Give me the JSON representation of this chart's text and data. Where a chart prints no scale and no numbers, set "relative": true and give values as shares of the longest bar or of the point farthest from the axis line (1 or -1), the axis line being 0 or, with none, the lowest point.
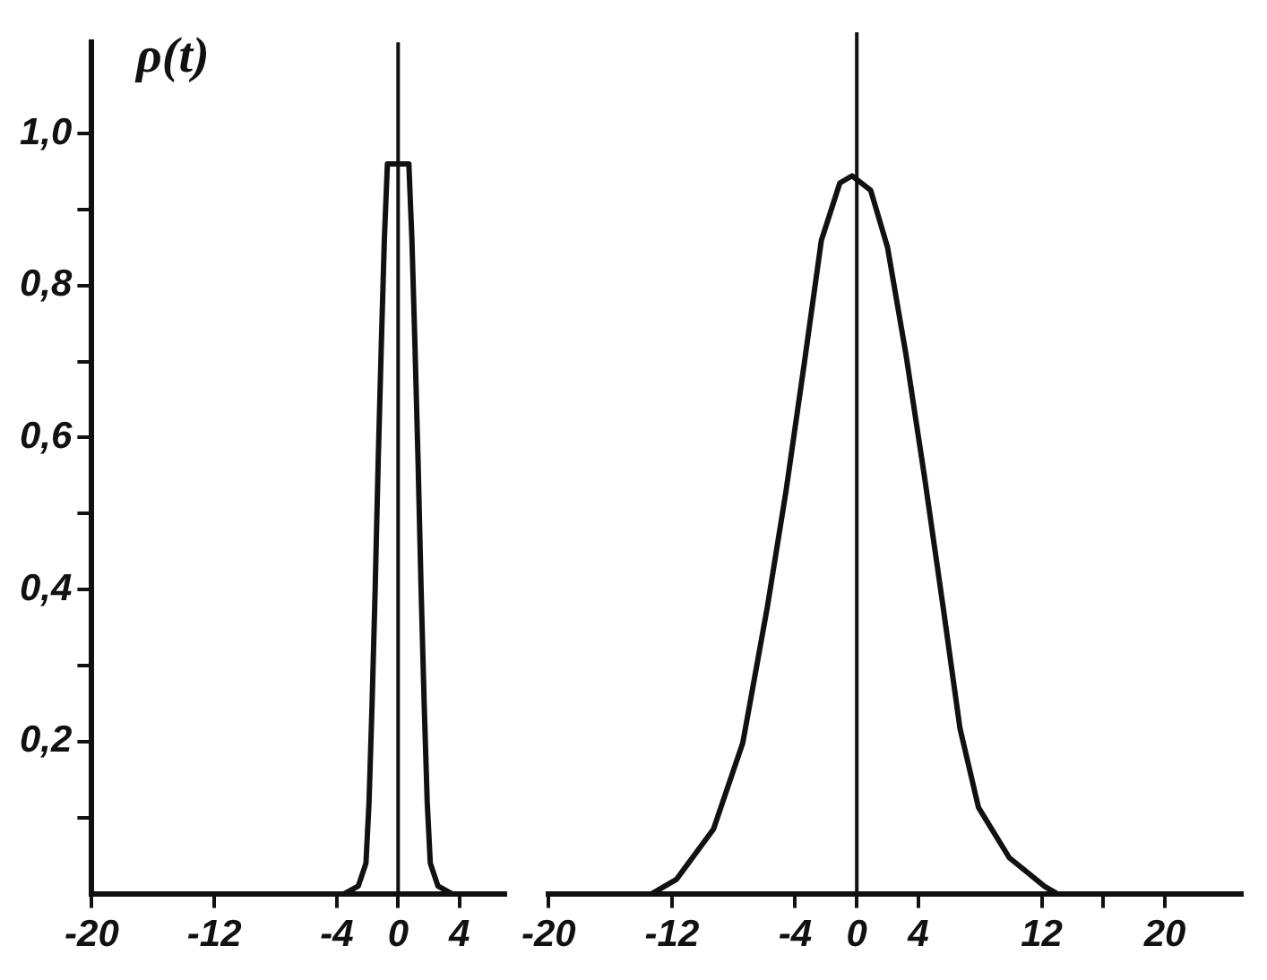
{
  "chart_data": [
    {
      "type": "line",
      "ylabel": "ρ(t)",
      "color": "#111111",
      "marker": "none",
      "line_style": "solid",
      "grid": false,
      "x": [
        -3.5,
        -2.6,
        -2.1,
        -1.9,
        -1.7,
        -1.5,
        -1.3,
        -1.1,
        -0.9,
        -0.7,
        0,
        0.7,
        0.9,
        1.1,
        1.3,
        1.5,
        1.7,
        1.9,
        2.1,
        2.6,
        3.5
      ],
      "values": [
        0,
        0.01,
        0.04,
        0.12,
        0.25,
        0.4,
        0.57,
        0.72,
        0.86,
        0.96,
        0.96,
        0.96,
        0.86,
        0.72,
        0.57,
        0.4,
        0.25,
        0.12,
        0.04,
        0.01,
        0
      ],
      "xlim": [
        -20,
        7
      ],
      "xticks": [
        -20,
        -12,
        -4,
        0,
        4
      ],
      "ylim": [
        0,
        1.12
      ],
      "yticks": [
        {
          "value": 0.1,
          "label": null
        },
        {
          "value": 0.2,
          "label": "0,2"
        },
        {
          "value": 0.3,
          "label": null
        },
        {
          "value": 0.4,
          "label": "0,4"
        },
        {
          "value": 0.5,
          "label": null
        },
        {
          "value": 0.6,
          "label": "0,6"
        },
        {
          "value": 0.7,
          "label": null
        },
        {
          "value": 0.8,
          "label": "0,8"
        },
        {
          "value": 0.9,
          "label": null
        },
        {
          "value": 1.0,
          "label": "1,0"
        }
      ],
      "ref_lines": [
        {
          "axis": "x",
          "value": 0,
          "color": "#111111"
        }
      ]
    },
    {
      "type": "line",
      "relative": true,
      "color": "#111111",
      "marker": "none",
      "line_style": "solid",
      "grid": false,
      "x": [
        -13.3,
        -11.7,
        -9.3,
        -7.4,
        -5.8,
        -4.6,
        -3.4,
        -2.3,
        -1.1,
        -0.3,
        0.9,
        2.0,
        3.2,
        4.4,
        5.6,
        6.7,
        7.9,
        9.9,
        12.2,
        13
      ],
      "values": [
        0,
        0.02,
        0.09,
        0.21,
        0.4,
        0.56,
        0.74,
        0.91,
        0.99,
        1,
        0.98,
        0.9,
        0.75,
        0.58,
        0.4,
        0.23,
        0.12,
        0.05,
        0.01,
        0
      ],
      "xlim": [
        -20,
        25
      ],
      "xticks": [
        -20,
        -12,
        -4,
        0,
        4,
        12,
        {
          "value": 16,
          "label": null
        },
        20
      ],
      "ref_lines": [
        {
          "axis": "x",
          "value": 0,
          "color": "#111111"
        }
      ]
    }
  ]
}
